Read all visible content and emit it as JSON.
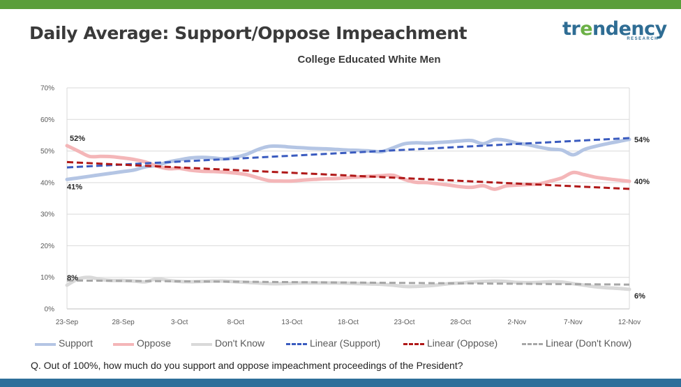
{
  "header": {
    "title": "Daily Average: Support/Oppose Impeachment",
    "logo_text": "trendency",
    "logo_subtext": "RESEARCH"
  },
  "colors": {
    "top_bar": "#5a9e3a",
    "bottom_bar": "#2e6f9a",
    "support": "#b4c5e4",
    "oppose": "#f4b6b8",
    "dont_know": "#d9d9d9",
    "linear_support": "#3a5bbf",
    "linear_oppose": "#b01818",
    "linear_dont_know": "#a6a6a6"
  },
  "chart_data": {
    "type": "line",
    "title": "College Educated White Men",
    "xlabel": "",
    "ylabel": "",
    "ylim": [
      0,
      70
    ],
    "y_ticks": [
      "0%",
      "10%",
      "20%",
      "30%",
      "40%",
      "50%",
      "60%",
      "70%"
    ],
    "x_ticks": [
      "23-Sep",
      "28-Sep",
      "3-Oct",
      "8-Oct",
      "13-Oct",
      "18-Oct",
      "23-Oct",
      "28-Oct",
      "2-Nov",
      "7-Nov",
      "12-Nov"
    ],
    "x": [
      "23-Sep",
      "24-Sep",
      "25-Sep",
      "26-Sep",
      "27-Sep",
      "28-Sep",
      "29-Sep",
      "30-Sep",
      "1-Oct",
      "2-Oct",
      "3-Oct",
      "4-Oct",
      "5-Oct",
      "6-Oct",
      "7-Oct",
      "8-Oct",
      "9-Oct",
      "10-Oct",
      "11-Oct",
      "12-Oct",
      "13-Oct",
      "14-Oct",
      "15-Oct",
      "16-Oct",
      "17-Oct",
      "18-Oct",
      "19-Oct",
      "20-Oct",
      "21-Oct",
      "22-Oct",
      "23-Oct",
      "24-Oct",
      "25-Oct",
      "26-Oct",
      "27-Oct",
      "28-Oct",
      "29-Oct",
      "30-Oct",
      "31-Oct",
      "1-Nov",
      "2-Nov",
      "3-Nov",
      "4-Nov",
      "5-Nov",
      "6-Nov",
      "7-Nov",
      "8-Nov",
      "9-Nov",
      "10-Nov",
      "11-Nov",
      "12-Nov"
    ],
    "series": [
      {
        "name": "Support",
        "style": "solid",
        "values": [
          41,
          41.5,
          42,
          42.5,
          43,
          43.5,
          44,
          45,
          45.5,
          46.5,
          47.2,
          47.8,
          48,
          47.8,
          47.5,
          48,
          49,
          50.5,
          51.5,
          51.5,
          51.2,
          51,
          50.8,
          50.7,
          50.5,
          50.3,
          50.2,
          50,
          49.8,
          51,
          52.3,
          52.6,
          52.5,
          52.7,
          52.9,
          53.2,
          53.3,
          52.3,
          53.6,
          53.4,
          52.5,
          52,
          51.2,
          50.6,
          50.3,
          48.8,
          50.5,
          51.5,
          52.3,
          53,
          53.7
        ]
      },
      {
        "name": "Oppose",
        "style": "solid",
        "values": [
          51.7,
          50,
          48.3,
          48.3,
          48.2,
          47.8,
          47.3,
          46.5,
          45.2,
          44.4,
          44.5,
          43.9,
          43.6,
          43.5,
          43.3,
          43,
          42.5,
          41.5,
          40.6,
          40.5,
          40.5,
          40.8,
          41,
          41.2,
          41.3,
          41.6,
          41.8,
          42,
          42.2,
          42.3,
          41,
          40.1,
          40,
          39.6,
          39.2,
          38.7,
          38.5,
          39,
          37.9,
          38.9,
          39.2,
          39.4,
          39.6,
          40.5,
          41.5,
          43.2,
          42.5,
          41.7,
          41.2,
          40.8,
          40.4
        ]
      },
      {
        "name": "Don't Know",
        "style": "solid",
        "values": [
          7.5,
          9.5,
          10,
          9.3,
          9,
          9,
          8.8,
          8.6,
          9.5,
          9,
          8.7,
          8.6,
          8.7,
          8.8,
          8.8,
          8.6,
          8.4,
          8.2,
          8,
          8,
          8.1,
          8.2,
          8.2,
          8.2,
          8.2,
          8.1,
          8,
          7.9,
          7.8,
          7.5,
          7.1,
          7.1,
          7.3,
          7.6,
          8,
          8.2,
          8.5,
          8.7,
          8.8,
          8.7,
          8.4,
          8.3,
          8.4,
          8.6,
          8.5,
          8,
          7.5,
          7,
          6.7,
          6.5,
          6.2
        ]
      },
      {
        "name": "Linear (Support)",
        "style": "dashed",
        "values_endpoints": [
          44.8,
          54.1
        ]
      },
      {
        "name": "Linear (Oppose)",
        "style": "dashed",
        "values_endpoints": [
          46.5,
          38.0
        ]
      },
      {
        "name": "Linear (Don't Know)",
        "style": "dashed",
        "values_endpoints": [
          9.0,
          7.7
        ]
      }
    ],
    "data_labels": [
      {
        "series": "Oppose",
        "point": "start",
        "text": "52%"
      },
      {
        "series": "Support",
        "point": "start",
        "text": "41%"
      },
      {
        "series": "Don't Know",
        "point": "start",
        "text": "8%"
      },
      {
        "series": "Support",
        "point": "end",
        "text": "54%"
      },
      {
        "series": "Oppose",
        "point": "end",
        "text": "40%"
      },
      {
        "series": "Don't Know",
        "point": "end",
        "text": "6%"
      }
    ],
    "legend_position": "bottom",
    "legend": [
      "Support",
      "Oppose",
      "Don't Know",
      "Linear (Support)",
      "Linear (Oppose)",
      "Linear (Don't Know)"
    ],
    "grid": true
  },
  "footer": {
    "question": "Q. Out of 100%, how much do you support and oppose impeachment proceedings of the President?"
  }
}
